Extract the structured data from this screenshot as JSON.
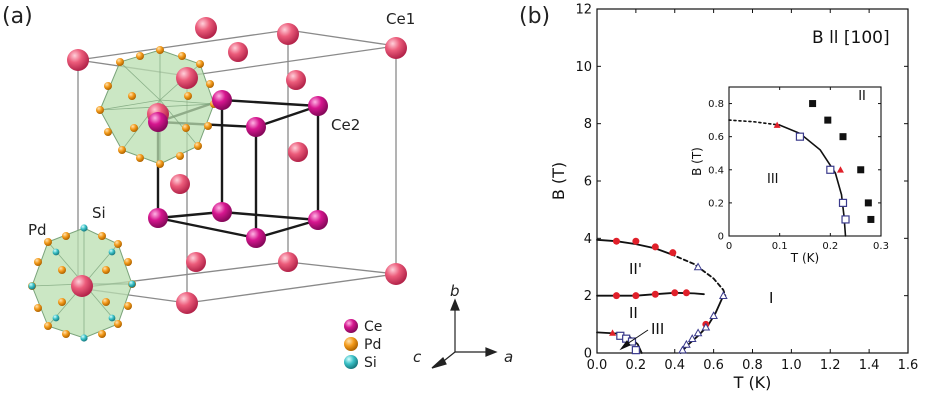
{
  "panel_a": {
    "label": "(a)",
    "site_labels": {
      "ce1": "Ce1",
      "ce2": "Ce2",
      "pd": "Pd",
      "si": "Si"
    },
    "legend": [
      {
        "name": "Ce",
        "color": "#d6168f"
      },
      {
        "name": "Pd",
        "color": "#f39a1a"
      },
      {
        "name": "Si",
        "color": "#39c0c6"
      }
    ],
    "axes": {
      "b": "b",
      "c": "c",
      "a": "a"
    },
    "colors": {
      "ce1": "#e8506f",
      "ce2": "#d6168f",
      "pd": "#f39a1a",
      "si": "#39c0c6",
      "cage": "#b9dfb0"
    }
  },
  "panel_b": {
    "label": "(b)",
    "annotation": "B ll [100]",
    "phase_labels": {
      "I": "I",
      "IIprime": "II'",
      "II": "II",
      "III": "III"
    }
  },
  "chart_data": [
    {
      "type": "scatter",
      "title": "",
      "xlabel": "T (K)",
      "ylabel": "B (T)",
      "xlim": [
        0,
        1.6
      ],
      "ylim": [
        0,
        12
      ],
      "xticks": [
        0.0,
        0.2,
        0.4,
        0.6,
        0.8,
        1.0,
        1.2,
        1.4,
        1.6
      ],
      "yticks": [
        0,
        2,
        4,
        6,
        8,
        10,
        12
      ],
      "xtick_labels": [
        "0.0",
        "0.2",
        "0.4",
        "0.6",
        "0.8",
        "1.0",
        "1.2",
        "1.4",
        "1.6"
      ],
      "ytick_labels": [
        "0",
        "2",
        "4",
        "6",
        "8",
        "10",
        "12"
      ],
      "grid": false,
      "annotation": "B ll [100]",
      "series": [
        {
          "marker": "filled-circle",
          "color": "#e0202a",
          "x": [
            0.1,
            0.2,
            0.3,
            0.39,
            0.1,
            0.2,
            0.3,
            0.4,
            0.46,
            0.56
          ],
          "y": [
            3.9,
            3.9,
            3.7,
            3.5,
            2.0,
            2.0,
            2.05,
            2.1,
            2.1,
            1.0
          ]
        },
        {
          "marker": "filled-triangle",
          "color": "#e0202a",
          "x": [
            0.08
          ],
          "y": [
            0.7
          ]
        },
        {
          "marker": "open-square",
          "color": "#3a3a8c",
          "x": [
            0.12,
            0.15,
            0.18,
            0.2
          ],
          "y": [
            0.6,
            0.5,
            0.4,
            0.1
          ]
        },
        {
          "marker": "open-triangle",
          "color": "#3a3a8c",
          "x": [
            0.44,
            0.46,
            0.49,
            0.52,
            0.56,
            0.6,
            0.65,
            0.52
          ],
          "y": [
            0.1,
            0.3,
            0.5,
            0.7,
            0.9,
            1.3,
            2.0,
            3.0
          ]
        }
      ],
      "curves": [
        {
          "style": "solid",
          "x": [
            0.0,
            0.1,
            0.2,
            0.3,
            0.38
          ],
          "y": [
            3.95,
            3.9,
            3.8,
            3.65,
            3.45
          ]
        },
        {
          "style": "dashed",
          "x": [
            0.38,
            0.5,
            0.6,
            0.65,
            0.66
          ],
          "y": [
            3.45,
            3.1,
            2.6,
            2.2,
            2.0
          ]
        },
        {
          "style": "solid",
          "x": [
            0.0,
            0.1,
            0.2,
            0.3,
            0.4,
            0.5,
            0.55
          ],
          "y": [
            2.0,
            2.0,
            2.0,
            2.05,
            2.1,
            2.08,
            2.05
          ]
        },
        {
          "style": "solid",
          "x": [
            0.43,
            0.47,
            0.52,
            0.57,
            0.61,
            0.65
          ],
          "y": [
            0.0,
            0.3,
            0.6,
            0.95,
            1.4,
            2.0
          ]
        },
        {
          "style": "solid",
          "x": [
            0.0,
            0.1,
            0.17,
            0.21,
            0.23
          ],
          "y": [
            0.72,
            0.68,
            0.55,
            0.3,
            0.0
          ]
        }
      ]
    },
    {
      "type": "scatter",
      "title": "",
      "xlabel": "T (K)",
      "ylabel": "B (T)",
      "xlim": [
        0,
        0.3
      ],
      "ylim": [
        0,
        0.9
      ],
      "xticks": [
        0,
        0.1,
        0.2,
        0.3
      ],
      "yticks": [
        0,
        0.2,
        0.4,
        0.6,
        0.8
      ],
      "xtick_labels": [
        "0",
        "0.1",
        "0.2",
        "0.3"
      ],
      "ytick_labels": [
        "0",
        "0.2",
        "0.4",
        "0.6",
        "0.8"
      ],
      "grid": false,
      "series": [
        {
          "marker": "filled-square",
          "color": "#111111",
          "x": [
            0.165,
            0.195,
            0.225,
            0.26,
            0.275,
            0.28
          ],
          "y": [
            0.8,
            0.7,
            0.6,
            0.4,
            0.2,
            0.1
          ]
        },
        {
          "marker": "filled-triangle",
          "color": "#e0202a",
          "x": [
            0.095,
            0.22
          ],
          "y": [
            0.67,
            0.4
          ]
        },
        {
          "marker": "open-square",
          "color": "#3a3a8c",
          "x": [
            0.14,
            0.2,
            0.225,
            0.23
          ],
          "y": [
            0.6,
            0.4,
            0.2,
            0.1
          ]
        }
      ],
      "curves": [
        {
          "style": "dotted",
          "x": [
            0.0,
            0.05,
            0.1
          ],
          "y": [
            0.7,
            0.69,
            0.67
          ]
        },
        {
          "style": "solid",
          "x": [
            0.1,
            0.14,
            0.18,
            0.21,
            0.222,
            0.227,
            0.23
          ],
          "y": [
            0.67,
            0.62,
            0.52,
            0.38,
            0.25,
            0.12,
            0.0
          ]
        }
      ],
      "phase_labels": [
        "II",
        "III"
      ]
    }
  ]
}
